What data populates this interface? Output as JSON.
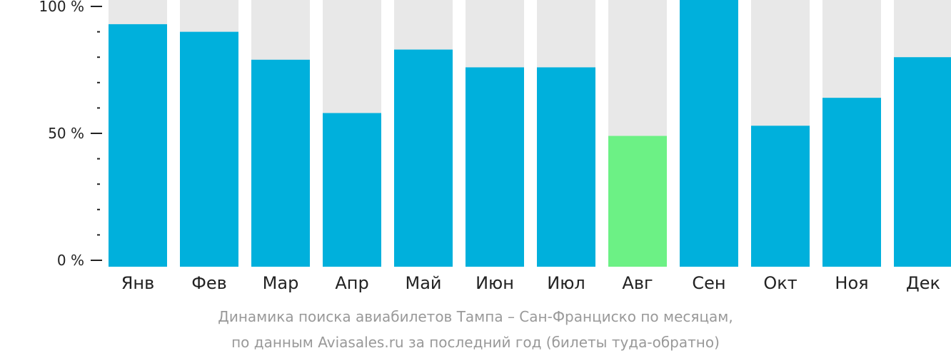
{
  "chart_data": {
    "type": "bar",
    "categories": [
      "Янв",
      "Фев",
      "Мар",
      "Апр",
      "Май",
      "Июн",
      "Июл",
      "Авг",
      "Сен",
      "Окт",
      "Ноя",
      "Дек"
    ],
    "values": [
      93,
      90,
      79,
      58,
      83,
      76,
      76,
      49,
      100,
      53,
      64,
      80
    ],
    "highlight_index": 7,
    "ylim": [
      0,
      100
    ],
    "y_ticks": [
      {
        "value": 100,
        "label": "100 %"
      },
      {
        "value": 50,
        "label": "50 %"
      },
      {
        "value": 0,
        "label": "0 %"
      }
    ],
    "y_minor_ticks": [
      90,
      80,
      70,
      60,
      40,
      30,
      20,
      10
    ],
    "colors": {
      "bar": "#00b0dc",
      "highlight": "#6cf185",
      "track": "#e8e8e8",
      "axis": "#222222"
    }
  },
  "caption": {
    "line1": "Динамика поиска авиабилетов Тампа – Сан-Франциско по месяцам,",
    "line2": "по данным Aviasales.ru за последний год (билеты туда-обратно)"
  }
}
